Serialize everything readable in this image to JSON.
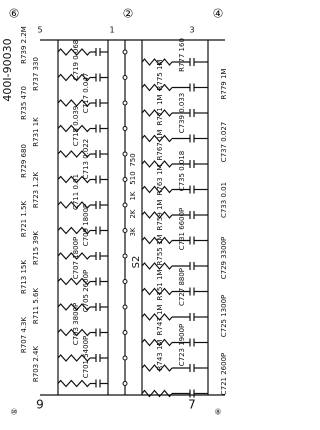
{
  "header": {
    "part_number": "400I-90030"
  },
  "terminals": [
    "5",
    "⑥",
    "1",
    "②",
    "3",
    "④",
    "⑩",
    "9",
    "⑧",
    "7"
  ],
  "left_labels": [
    "R739 2.2M",
    "R737 330",
    "R735 470",
    "R731 1K",
    "R729 680",
    "R723 1.2K",
    "R721 1.5K",
    "R715 39K",
    "R713 15K",
    "R711 5.6K",
    "R707 4.3K",
    "R703 2.4K"
  ],
  "inner_labels": [
    "C719 0.068",
    "C717 0.047",
    "C715 0.039",
    "C713 0.022",
    "C711 0.01",
    "C709 1800P",
    "C707 1800P",
    "C705 2600P",
    "C703 3800P",
    "C701 5400P"
  ],
  "center_labels": [
    "R775 1M",
    "R771 1M",
    "R767 1M",
    "R763 1M",
    "R759 1M",
    "R755 1M",
    "R751 1M",
    "R747 1M",
    "R743 1M",
    "750",
    "510",
    "1K",
    "2K",
    "3K",
    "S2"
  ],
  "right_labels": [
    "R777 160",
    "R779 1M",
    "C739 0.033",
    "C737 0.027",
    "C735 0.018",
    "C733 0.01",
    "C731 6600P",
    "C729 3300P",
    "C727 880P",
    "C725 1300P",
    "C723 1900P",
    "C721 2600P"
  ]
}
